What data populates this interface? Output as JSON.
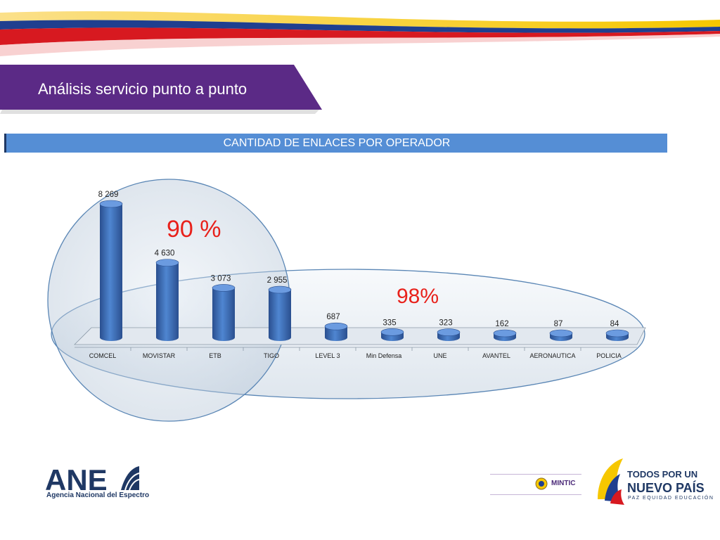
{
  "slide": {
    "title": "Análisis servicio punto a punto",
    "chart_header": "CANTIDAD DE ENLACES POR OPERADOR",
    "callout_left": "90 %",
    "callout_right": "98%"
  },
  "chart_data": {
    "type": "bar",
    "title": "CANTIDAD DE ENLACES POR OPERADOR",
    "categories": [
      "COMCEL",
      "MOVISTAR",
      "ETB",
      "TIGO",
      "LEVEL 3",
      "Min Defensa",
      "UNE",
      "AVANTEL",
      "AERONAUTICA",
      "POLICIA"
    ],
    "values": [
      8269,
      4630,
      3073,
      2955,
      687,
      335,
      323,
      162,
      87,
      84
    ],
    "value_labels": [
      "8 269",
      "4 630",
      "3 073",
      "2 955",
      "687",
      "335",
      "323",
      "162",
      "87",
      "84"
    ],
    "grid": false,
    "bar_style": "3d-cylinder",
    "bar_color": "#3f6fba"
  },
  "footer": {
    "ane_logo": "ANE",
    "ane_subtitle": "Agencia Nacional del Espectro",
    "mintic_logo": "MINTIC",
    "campaign_line1": "TODOS POR UN",
    "campaign_line2": "NUEVO PAÍS",
    "campaign_line3": "PAZ  EQUIDAD  EDUCACIÓN"
  },
  "colors": {
    "purple": "#5b2a86",
    "header_blue": "#558ed5",
    "bar_blue": "#3f6fba",
    "callout_red": "#e8211b",
    "flag_yellow": "#f6c700",
    "flag_blue": "#1f3f8f",
    "flag_red": "#d71920"
  }
}
